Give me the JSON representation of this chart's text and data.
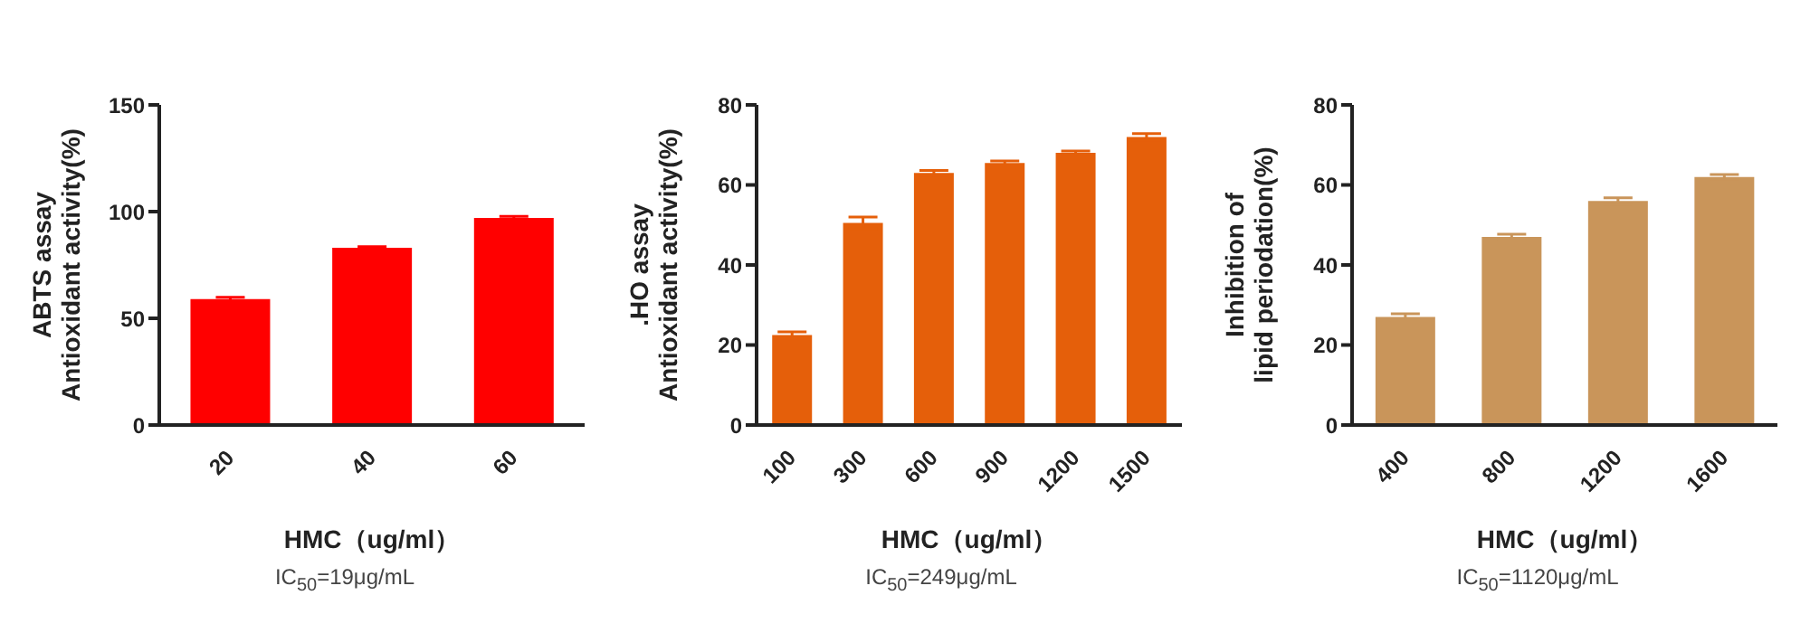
{
  "chart_data": [
    {
      "type": "bar",
      "categories": [
        "20",
        "40",
        "60"
      ],
      "values": [
        59,
        83,
        97
      ],
      "errors": [
        0.8,
        0.6,
        0.8
      ],
      "color": "#ff0000",
      "xlabel": "HMC（ug/ml）",
      "ylabel": "ABTS assay\nAntioxidant activity(%)",
      "ylim": [
        0,
        150
      ],
      "yticks": [
        0,
        50,
        100,
        150
      ],
      "grid": false,
      "legend": false,
      "annotations": [
        "IC$_{50}$=19μg/mL"
      ]
    },
    {
      "type": "bar",
      "categories": [
        "100",
        "300",
        "600",
        "900",
        "1200",
        "1500"
      ],
      "values": [
        22.5,
        50.5,
        63,
        65.5,
        68,
        72
      ],
      "errors": [
        0.8,
        1.5,
        0.6,
        0.5,
        0.5,
        0.8
      ],
      "color": "#e55f0a",
      "xlabel": "HMC（ug/ml）",
      "ylabel": ".HO assay\nAntioxidant activity(%)",
      "ylim": [
        0,
        80
      ],
      "yticks": [
        0,
        20,
        40,
        60,
        80
      ],
      "grid": false,
      "legend": false,
      "annotations": [
        "IC$_{50}$=249μg/mL"
      ]
    },
    {
      "type": "bar",
      "categories": [
        "400",
        "800",
        "1200",
        "1600"
      ],
      "values": [
        27,
        47,
        56,
        62
      ],
      "errors": [
        0.8,
        0.7,
        0.8,
        0.6
      ],
      "color": "#c9955a",
      "xlabel": "HMC（ug/ml）",
      "ylabel": "Inhibition of\nlipid periodation(%)",
      "ylim": [
        0,
        80
      ],
      "yticks": [
        0,
        20,
        40,
        60,
        80
      ],
      "grid": false,
      "legend": false,
      "annotations": [
        "IC$_{50}$=1120μg/mL"
      ]
    }
  ]
}
